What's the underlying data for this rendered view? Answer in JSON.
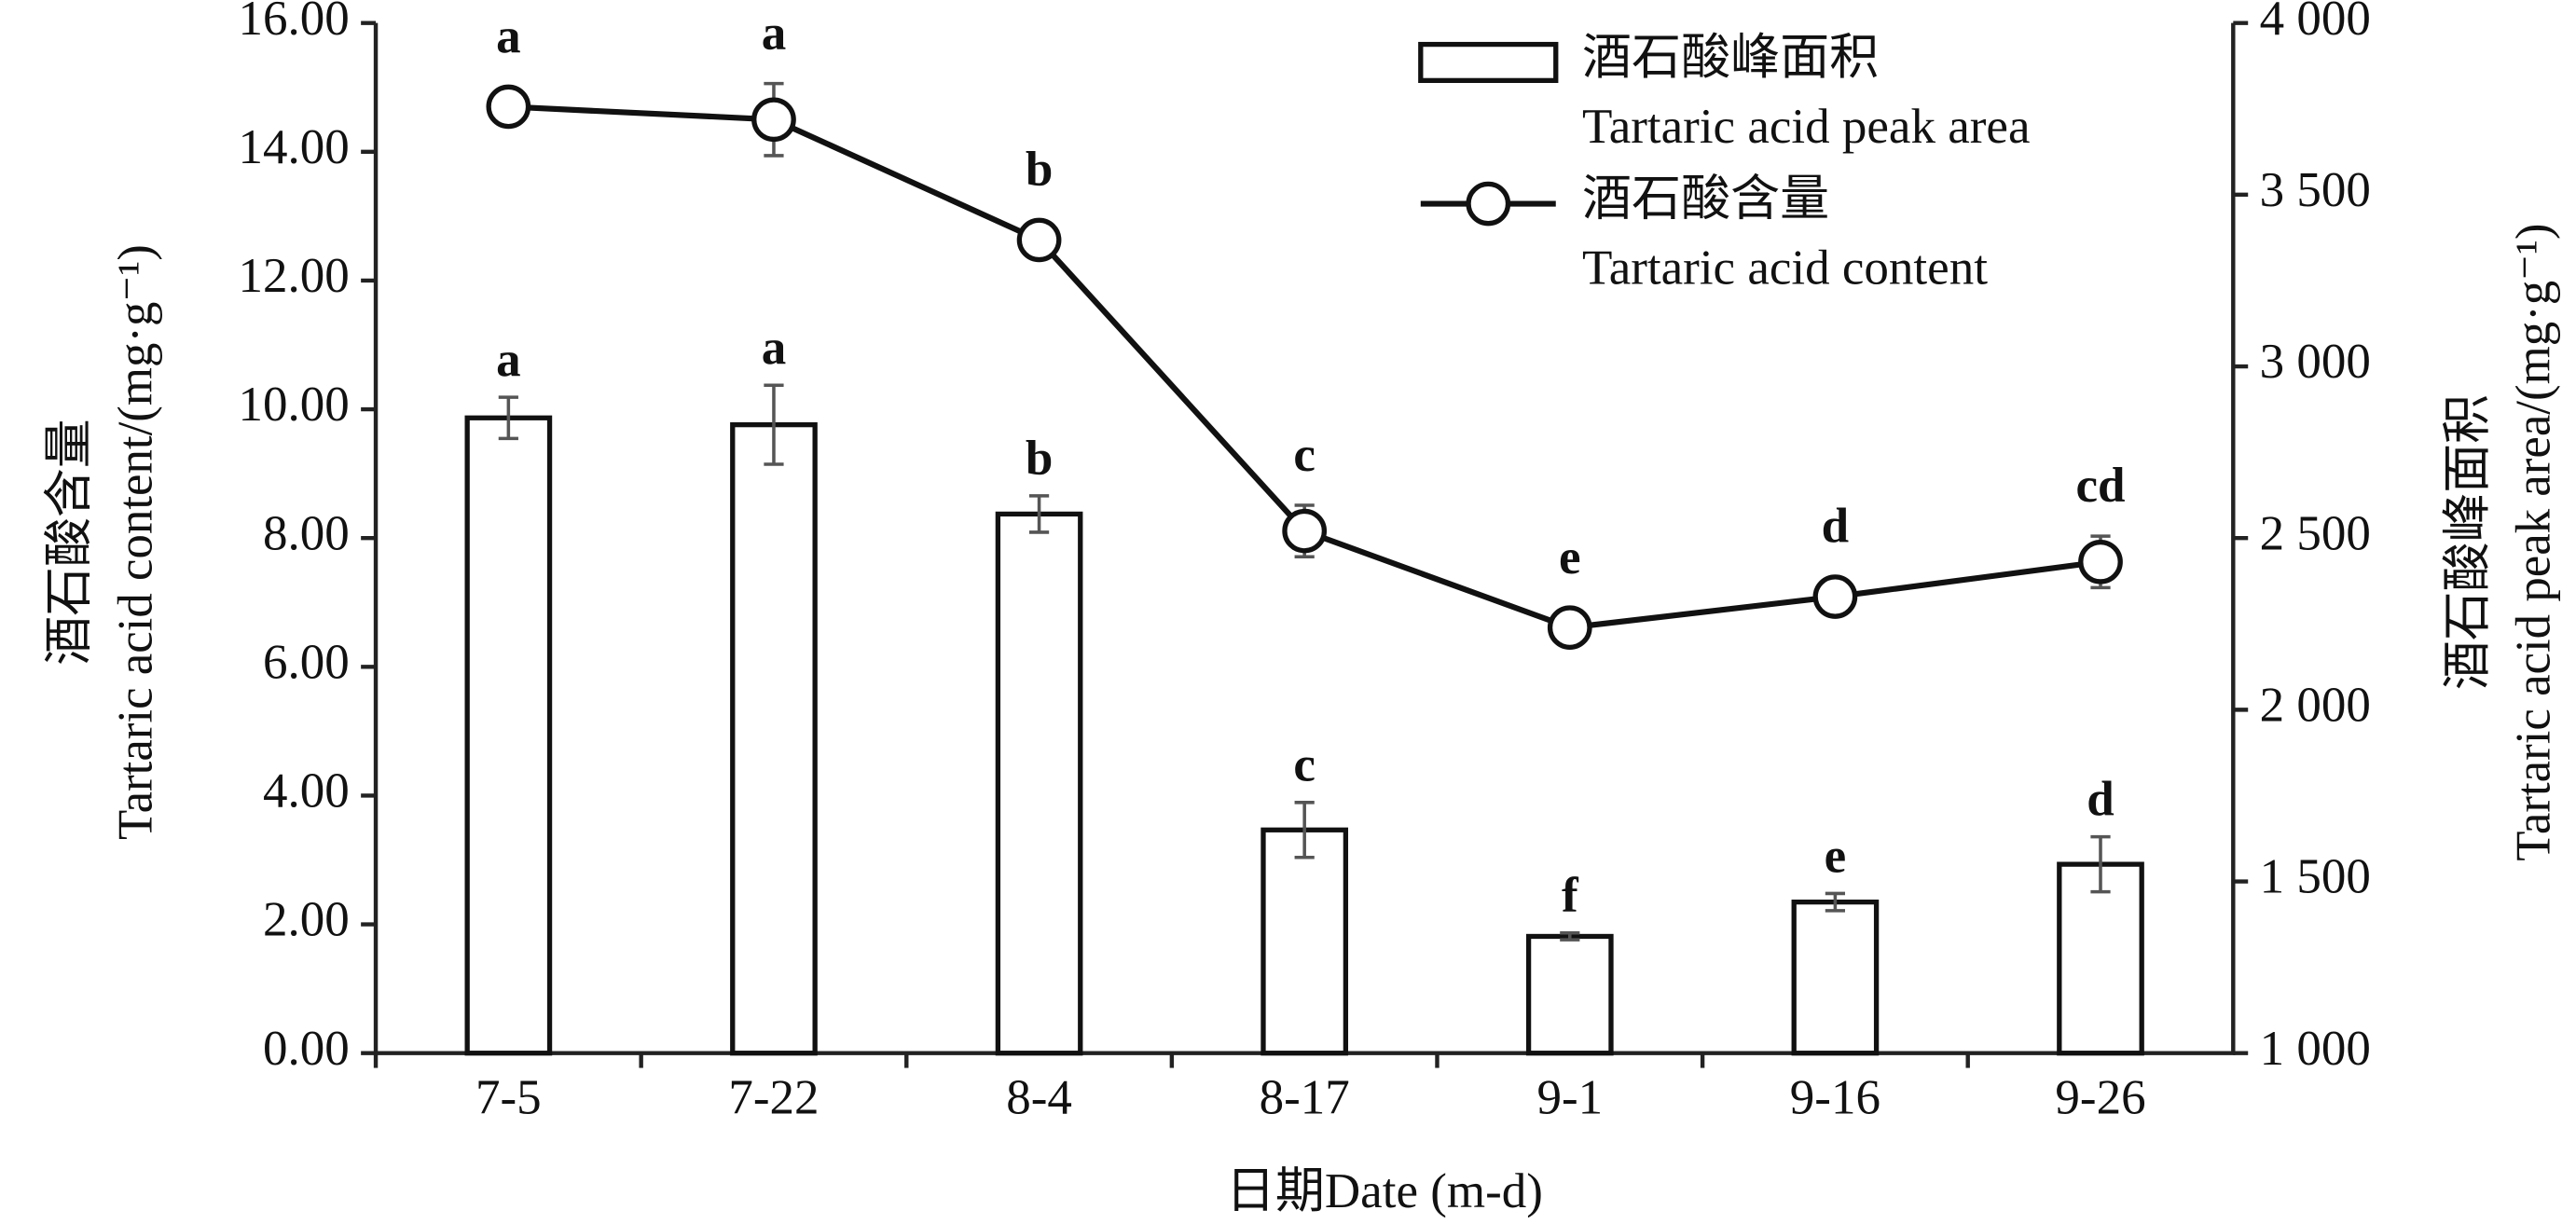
{
  "chart_data": {
    "type": "bar-line",
    "xlabel": "日期Date (m-d)",
    "ylabel": [
      "酒石酸含量",
      "Tartaric acid content/(mg·g⁻¹)"
    ],
    "y2label": [
      "酒石酸峰面积",
      "Tartaric acid peak area/(mg·g⁻¹)"
    ],
    "categories": [
      "7-5",
      "7-22",
      "8-4",
      "8-17",
      "9-1",
      "9-16",
      "9-26"
    ],
    "ylim": [
      0,
      16
    ],
    "yticks": [
      {
        "value": 0,
        "label": "0.00"
      },
      {
        "value": 2,
        "label": "2.00"
      },
      {
        "value": 4,
        "label": "4.00"
      },
      {
        "value": 6,
        "label": "6.00"
      },
      {
        "value": 8,
        "label": "8.00"
      },
      {
        "value": 10,
        "label": "10.00"
      },
      {
        "value": 12,
        "label": "12.00"
      },
      {
        "value": 14,
        "label": "14.00"
      },
      {
        "value": 16,
        "label": "16.00"
      }
    ],
    "y2lim": [
      1000,
      4000
    ],
    "y2ticks": [
      {
        "value": 1000,
        "label": "1 000"
      },
      {
        "value": 1500,
        "label": "1 500"
      },
      {
        "value": 2000,
        "label": "2 000"
      },
      {
        "value": 2500,
        "label": "2 500"
      },
      {
        "value": 3000,
        "label": "3 000"
      },
      {
        "value": 3500,
        "label": "3 500"
      },
      {
        "value": 4000,
        "label": "4 000"
      }
    ],
    "series": [
      {
        "name": [
          "酒石酸峰面积",
          "Tartaric acid peak area"
        ],
        "type": "bar",
        "axis": "y2",
        "color": "#ffffff",
        "values": [
          2850,
          2830,
          2570,
          1650,
          1340,
          1440,
          1550
        ],
        "errors": [
          60,
          115,
          53,
          80,
          10,
          25,
          80
        ],
        "letters": [
          "a",
          "a",
          "b",
          "c",
          "f",
          "e",
          "d"
        ]
      },
      {
        "name": [
          "酒石酸含量",
          "Tartaric acid content"
        ],
        "type": "line",
        "axis": "y",
        "color": "#111111",
        "values": [
          14.7,
          14.5,
          12.63,
          8.11,
          6.61,
          7.09,
          7.63
        ],
        "errors": [
          0.05,
          0.56,
          0.28,
          0.4,
          0.05,
          0.05,
          0.4
        ],
        "letters": [
          "a",
          "a",
          "b",
          "c",
          "e",
          "d",
          "cd"
        ]
      }
    ]
  }
}
